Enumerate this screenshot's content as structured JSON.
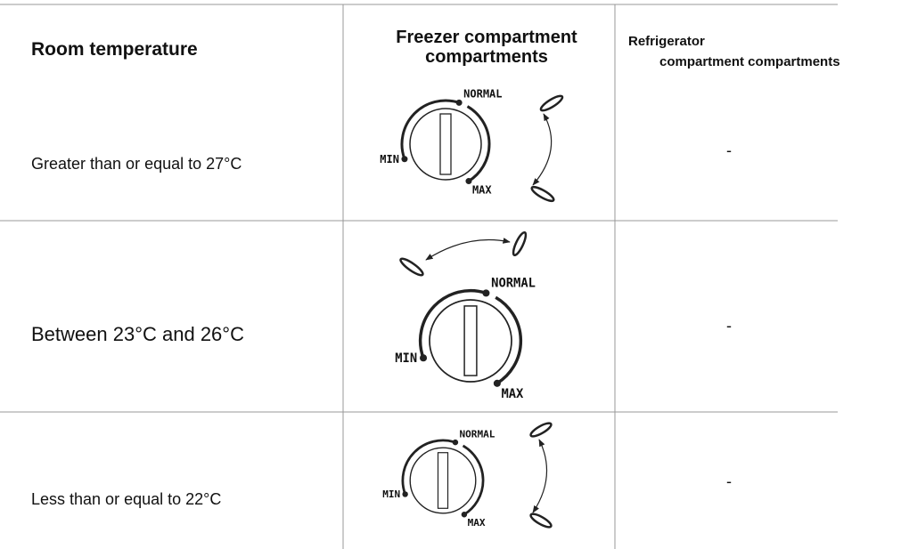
{
  "table": {
    "header": [
      "Room temperature",
      "Freezer compartment compartments",
      [
        "Refrigerator",
        "compartment compartments"
      ]
    ],
    "rows": [
      {
        "room": "Greater than or equal to 27°C",
        "freezer": {
          "min": "MIN",
          "normal": "NORMAL",
          "max": "MAX"
        },
        "refrigerator": "-"
      },
      {
        "room": "Between 23°C and 26°C",
        "freezer": {
          "min": "MIN",
          "normal": "NORMAL",
          "max": "MAX"
        },
        "refrigerator": "-"
      },
      {
        "room": "Less than or equal to 22°C",
        "freezer": {
          "min": "MIN",
          "normal": "NORMAL",
          "max": "MAX"
        },
        "refrigerator": "-"
      }
    ]
  }
}
